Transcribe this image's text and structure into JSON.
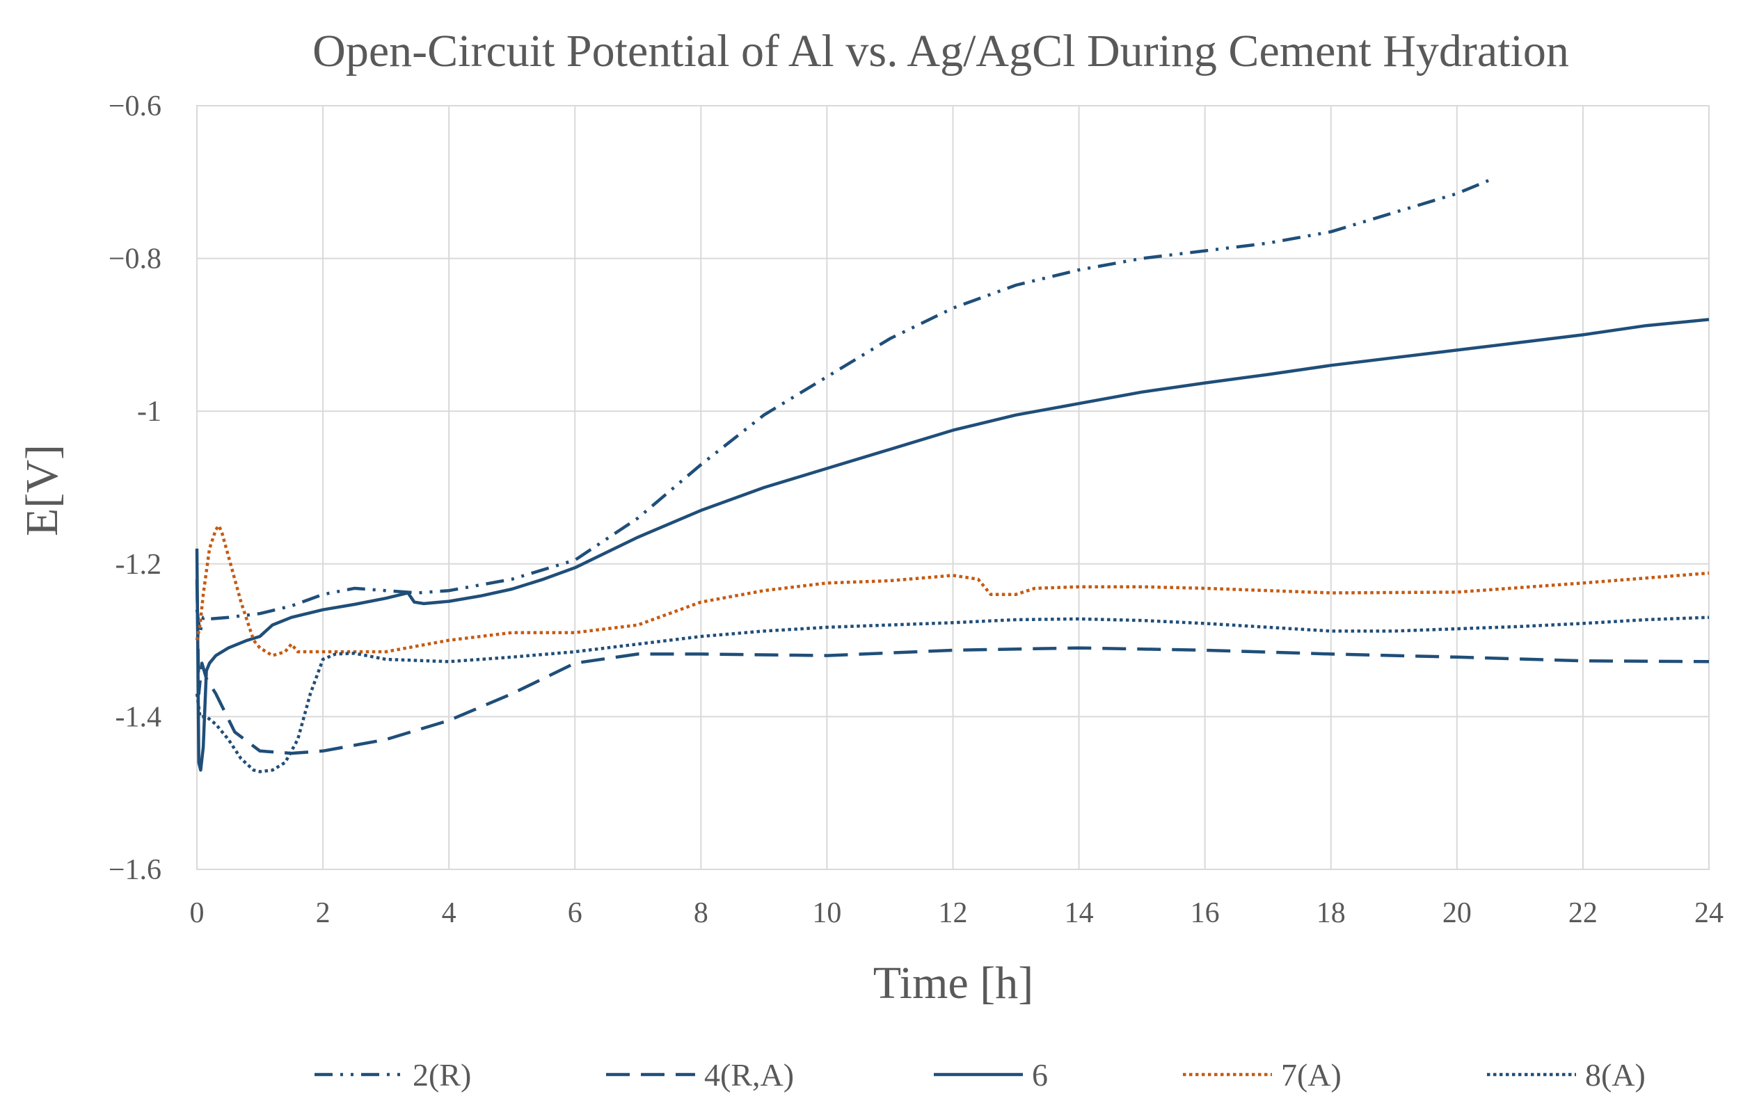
{
  "chart_data": {
    "type": "line",
    "title": "Open-Circuit Potential of Al vs. Ag/AgCl  During Cement Hydration",
    "xlabel": "Time [h]",
    "ylabel": "E[V]",
    "xlim": [
      0,
      24
    ],
    "ylim": [
      -1.6,
      -0.6
    ],
    "xticks": [
      0,
      2,
      4,
      6,
      8,
      10,
      12,
      14,
      16,
      18,
      20,
      22,
      24
    ],
    "yticks": [
      -1.6,
      -1.4,
      -1.2,
      -1,
      -0.8,
      -0.6
    ],
    "ytick_labels": [
      "−1.6",
      "-1.4",
      "-1.2",
      "-1",
      "−0.8",
      "−0.6"
    ],
    "grid": true,
    "legend_position": "bottom",
    "colors": {
      "blue": "#1f4e79",
      "orange": "#c55a11",
      "grid": "#d9d9d9",
      "text": "#595959"
    },
    "series": [
      {
        "name": "2(R)",
        "color": "#1f4e79",
        "dash": "dashdotdot",
        "x": [
          0,
          0.05,
          0.1,
          0.2,
          0.5,
          1,
          1.5,
          2,
          2.5,
          3,
          3.5,
          4,
          5,
          6,
          7,
          8,
          9,
          10,
          11,
          12,
          13,
          14,
          15,
          16,
          17,
          18,
          19,
          20,
          20.5
        ],
        "y": [
          -1.26,
          -1.29,
          -1.27,
          -1.272,
          -1.27,
          -1.265,
          -1.255,
          -1.24,
          -1.232,
          -1.235,
          -1.238,
          -1.235,
          -1.22,
          -1.195,
          -1.14,
          -1.07,
          -1.005,
          -0.955,
          -0.905,
          -0.865,
          -0.835,
          -0.815,
          -0.8,
          -0.79,
          -0.78,
          -0.765,
          -0.74,
          -0.715,
          -0.698
        ]
      },
      {
        "name": "4(R,A)",
        "color": "#1f4e79",
        "dash": "longdash",
        "x": [
          0,
          0.03,
          0.08,
          0.15,
          0.3,
          0.6,
          1,
          1.5,
          2,
          3,
          4,
          5,
          6,
          7,
          8,
          10,
          12,
          14,
          16,
          18,
          20,
          22,
          24
        ],
        "y": [
          -1.22,
          -1.37,
          -1.33,
          -1.35,
          -1.37,
          -1.42,
          -1.445,
          -1.448,
          -1.445,
          -1.43,
          -1.405,
          -1.37,
          -1.33,
          -1.318,
          -1.318,
          -1.32,
          -1.313,
          -1.31,
          -1.313,
          -1.318,
          -1.322,
          -1.327,
          -1.328
        ]
      },
      {
        "name": "6",
        "color": "#1f4e79",
        "dash": "solid",
        "x": [
          0,
          0.03,
          0.06,
          0.1,
          0.15,
          0.2,
          0.3,
          0.5,
          0.8,
          1,
          1.2,
          1.5,
          2,
          2.5,
          3,
          3.35,
          3.45,
          3.6,
          4,
          4.5,
          5,
          5.5,
          6,
          7,
          8,
          9,
          10,
          11,
          12,
          13,
          14,
          15,
          16,
          17,
          18,
          19,
          20,
          21,
          22,
          23,
          24
        ],
        "y": [
          -1.18,
          -1.46,
          -1.47,
          -1.44,
          -1.34,
          -1.33,
          -1.32,
          -1.31,
          -1.3,
          -1.295,
          -1.28,
          -1.27,
          -1.26,
          -1.253,
          -1.245,
          -1.238,
          -1.25,
          -1.252,
          -1.249,
          -1.242,
          -1.233,
          -1.22,
          -1.205,
          -1.165,
          -1.13,
          -1.1,
          -1.075,
          -1.05,
          -1.025,
          -1.005,
          -0.99,
          -0.975,
          -0.963,
          -0.952,
          -0.94,
          -0.93,
          -0.92,
          -0.91,
          -0.9,
          -0.888,
          -0.88
        ]
      },
      {
        "name": "7(A)",
        "color": "#c55a11",
        "dash": "dotted",
        "x": [
          0,
          0.05,
          0.1,
          0.2,
          0.3,
          0.35,
          0.4,
          0.5,
          0.7,
          0.9,
          1,
          1.2,
          1.4,
          1.5,
          1.6,
          2,
          3,
          4,
          5,
          6,
          7,
          8,
          9,
          10,
          11,
          12,
          12.4,
          12.6,
          13,
          13.3,
          14,
          15,
          16,
          18,
          20,
          22,
          24
        ],
        "y": [
          -1.3,
          -1.28,
          -1.24,
          -1.18,
          -1.155,
          -1.15,
          -1.16,
          -1.19,
          -1.25,
          -1.3,
          -1.31,
          -1.32,
          -1.315,
          -1.305,
          -1.315,
          -1.315,
          -1.315,
          -1.3,
          -1.29,
          -1.29,
          -1.28,
          -1.25,
          -1.235,
          -1.225,
          -1.222,
          -1.215,
          -1.22,
          -1.24,
          -1.24,
          -1.232,
          -1.23,
          -1.23,
          -1.232,
          -1.238,
          -1.237,
          -1.225,
          -1.212
        ]
      },
      {
        "name": "8(A)",
        "color": "#1f4e79",
        "dash": "dotted",
        "x": [
          0,
          0.05,
          0.15,
          0.3,
          0.5,
          0.7,
          0.9,
          1,
          1.2,
          1.4,
          1.6,
          1.8,
          2,
          2.2,
          2.5,
          3,
          4,
          5,
          6,
          7,
          8,
          9,
          10,
          11,
          12,
          13,
          14,
          15,
          16,
          17,
          18,
          19,
          20,
          21,
          22,
          23,
          24
        ],
        "y": [
          -1.37,
          -1.4,
          -1.4,
          -1.41,
          -1.43,
          -1.455,
          -1.47,
          -1.472,
          -1.47,
          -1.46,
          -1.43,
          -1.37,
          -1.325,
          -1.318,
          -1.317,
          -1.325,
          -1.328,
          -1.322,
          -1.315,
          -1.305,
          -1.295,
          -1.288,
          -1.283,
          -1.28,
          -1.277,
          -1.273,
          -1.272,
          -1.274,
          -1.278,
          -1.283,
          -1.288,
          -1.288,
          -1.285,
          -1.282,
          -1.278,
          -1.273,
          -1.27
        ]
      }
    ]
  }
}
